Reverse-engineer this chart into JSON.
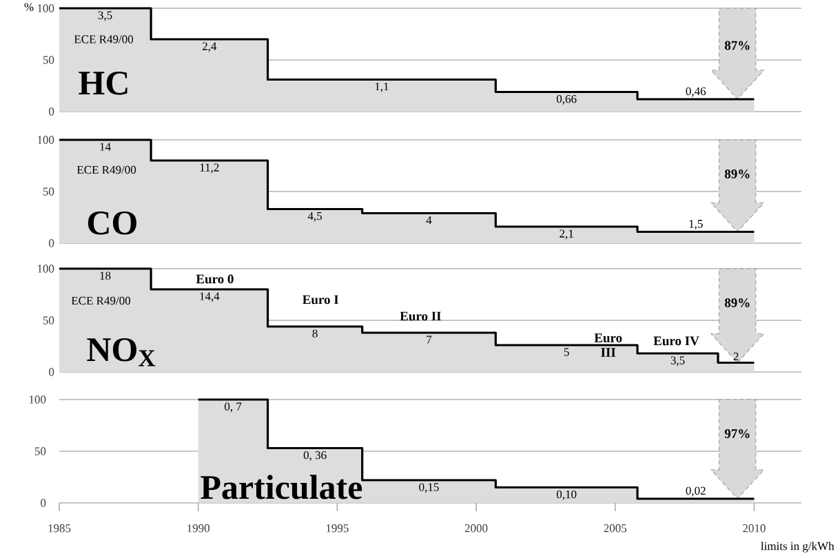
{
  "chart_data": [
    {
      "type": "step",
      "title": "HC",
      "ylabel": "%",
      "x": [
        1985,
        1988.3,
        1992.5,
        2000.7,
        2005.8,
        2010
      ],
      "series": [
        {
          "color": "#000000",
          "values": [
            100,
            70,
            31,
            19,
            12,
            12
          ]
        }
      ],
      "xlim": [
        1985,
        2011.7
      ],
      "ylim": [
        0,
        100
      ],
      "yticks": [
        0,
        50,
        100
      ],
      "grid": "y",
      "tick_labels": "y",
      "annotations": [
        "3,5",
        "2,4",
        "1,1",
        "0,66",
        "0,46",
        "ECE R49/00",
        "87%"
      ]
    },
    {
      "type": "step",
      "title": "CO",
      "x": [
        1985,
        1988.3,
        1992.5,
        1995.9,
        2000.7,
        2005.8,
        2010
      ],
      "series": [
        {
          "color": "#000000",
          "values": [
            100,
            80,
            33,
            29,
            16,
            11,
            11
          ]
        }
      ],
      "xlim": [
        1985,
        2011.7
      ],
      "ylim": [
        0,
        100
      ],
      "yticks": [
        0,
        50,
        100
      ],
      "grid": "y",
      "tick_labels": "y",
      "annotations": [
        "14",
        "11,2",
        "4,5",
        "4",
        "2,1",
        "1,5",
        "ECE R49/00",
        "89%"
      ]
    },
    {
      "type": "step",
      "title": "NO$_{X}$",
      "x": [
        1985,
        1988.3,
        1992.5,
        1995.9,
        2000.7,
        2005.8,
        2008.7,
        2010
      ],
      "series": [
        {
          "color": "#000000",
          "values": [
            100,
            80,
            44,
            38,
            26,
            18,
            9,
            9
          ]
        }
      ],
      "xlim": [
        1985,
        2011.7
      ],
      "ylim": [
        0,
        100
      ],
      "yticks": [
        0,
        50,
        100
      ],
      "grid": "y",
      "tick_labels": "y",
      "annotations": [
        "18",
        "14,4",
        "8",
        "7",
        "5",
        "3,5",
        "2",
        "ECE R49/00",
        "Euro 0",
        "Euro I",
        "Euro II",
        "Euro III",
        "Euro IV",
        "89%"
      ]
    },
    {
      "type": "step",
      "title": "Particulate",
      "xlabel": "limits in g/kWh",
      "x": [
        1990,
        1992.5,
        1995.9,
        2000.7,
        2005.8,
        2010
      ],
      "series": [
        {
          "color": "#000000",
          "values": [
            100,
            53,
            22,
            15,
            4,
            4
          ]
        }
      ],
      "xlim": [
        1985,
        2011.7
      ],
      "ylim": [
        0,
        100
      ],
      "yticks": [
        0,
        50,
        100
      ],
      "xticks": [
        1985,
        1990,
        1995,
        2000,
        2005,
        2010
      ],
      "grid": "y",
      "annotations": [
        "0, 7",
        "0, 36",
        "0,15",
        "0,10",
        "0,02",
        "97%"
      ]
    }
  ]
}
